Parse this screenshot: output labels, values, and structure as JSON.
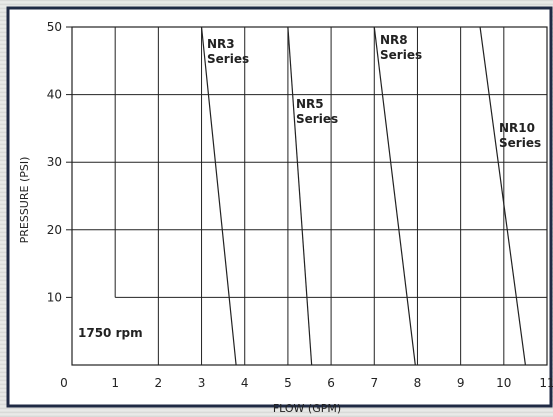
{
  "chart_data": {
    "type": "line",
    "xlabel": "FLOW (GPM)",
    "ylabel": "PRESSURE (PSI)",
    "xlim": [
      0,
      11
    ],
    "ylim": [
      0,
      50
    ],
    "x_ticks": [
      "0",
      "1",
      "2",
      "3",
      "4",
      "5",
      "6",
      "7",
      "8",
      "9",
      "10",
      "11"
    ],
    "y_ticks": [
      "10",
      "20",
      "30",
      "40",
      "50"
    ],
    "grid": true,
    "annotation": "1750 rpm",
    "series": [
      {
        "name": "NR3 Series",
        "points": [
          [
            3.0,
            50
          ],
          [
            3.8,
            0
          ]
        ]
      },
      {
        "name": "NR5 Series",
        "points": [
          [
            5.0,
            50
          ],
          [
            5.55,
            0
          ]
        ]
      },
      {
        "name": "NR8 Series",
        "points": [
          [
            7.0,
            50
          ],
          [
            7.95,
            0
          ]
        ]
      },
      {
        "name": "NR10 Series",
        "points": [
          [
            9.45,
            50
          ],
          [
            10.5,
            0
          ]
        ]
      }
    ],
    "colors": {
      "background": "#ffffff",
      "line": "#222222",
      "border": "#1f2a44"
    }
  }
}
